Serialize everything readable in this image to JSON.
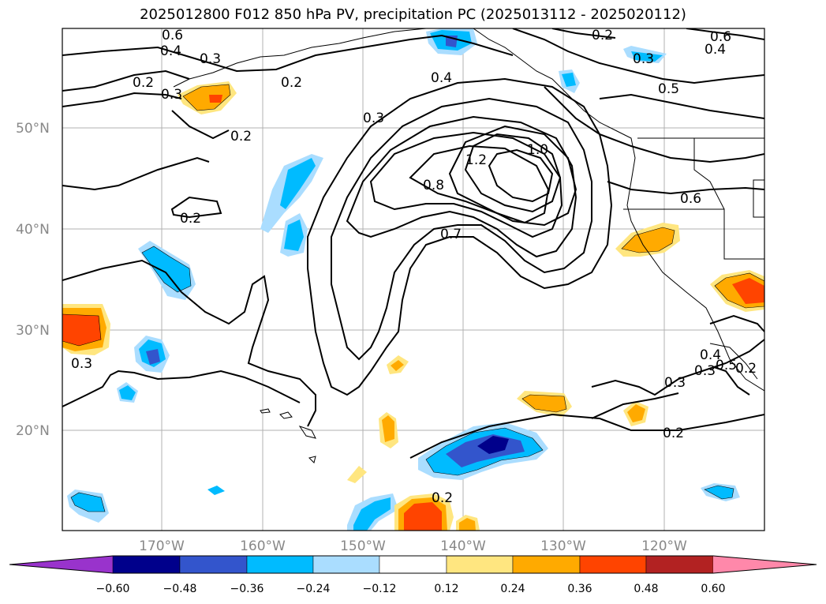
{
  "title": "2025012800 F012 850 hPa PV, precipitation PC (2025013112 - 2025020112)",
  "lat_labels": [
    "50°N",
    "40°N",
    "30°N",
    "20°N"
  ],
  "lon_labels": [
    "170°W",
    "160°W",
    "150°W",
    "140°W",
    "130°W",
    "120°W"
  ],
  "contour_labels": [
    "0.6",
    "0.4",
    "0.3",
    "0.2",
    "0.3",
    "0.2",
    "0.2",
    "0.2",
    "0.4",
    "0.3",
    "1.2",
    "1.0",
    "0.8",
    "0.7",
    "0.2",
    "0.3",
    "0.6",
    "0.5",
    "0.6",
    "0.4",
    "0.3",
    "0.2",
    "0.3",
    "0.2",
    "0.3",
    "0.4",
    "0.5",
    "0.2"
  ],
  "colorbar": {
    "ticks": [
      "−0.60",
      "−0.48",
      "−0.36",
      "−0.24",
      "−0.12",
      "0.12",
      "0.24",
      "0.36",
      "0.48",
      "0.60"
    ],
    "colors": [
      "#9933cc",
      "#00008b",
      "#3355cc",
      "#00bbff",
      "#aaddff",
      "#ffffff",
      "#ffe680",
      "#ffaa00",
      "#ff4400",
      "#b22222",
      "#ff88aa"
    ]
  },
  "legend_colors": {
    "positive": [
      "#ffe680",
      "#ffaa00",
      "#ff4400"
    ],
    "negative": [
      "#aaddff",
      "#00bbff",
      "#3355cc",
      "#00008b"
    ]
  }
}
